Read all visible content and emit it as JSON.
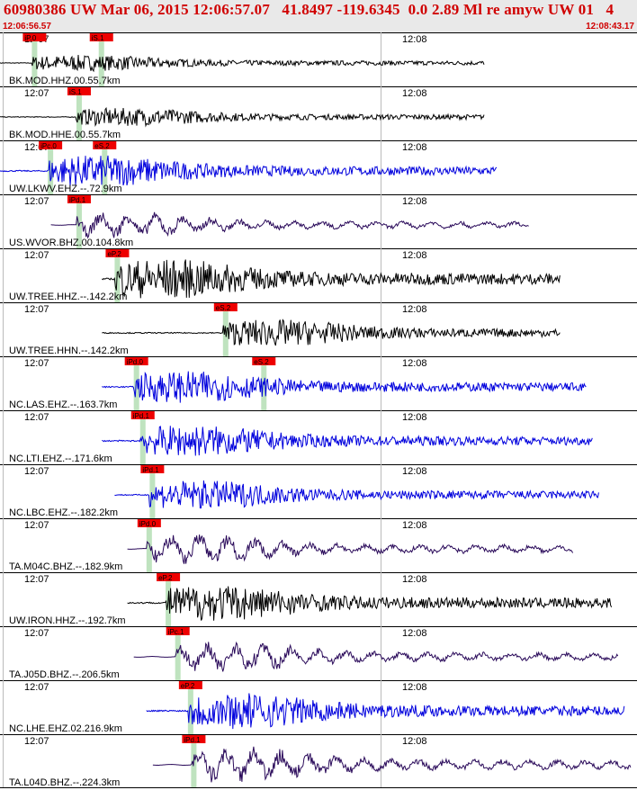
{
  "header": {
    "title": "60980386 UW Mar 06, 2015 12:06:57.07   41.8497 -119.6345  0.0 2.89 Ml re amyw UW 01   4",
    "start_time": "12:06:56.57",
    "end_time": "12:08:43.17"
  },
  "colors": {
    "header_text": "#d00000",
    "pick_box": "#ee0000",
    "pick_window": "#bfe3bf",
    "black_trace": "#000000",
    "blue_trace": "#0000dd",
    "purple_trace": "#2a0a5a"
  },
  "chart_data": {
    "type": "seismogram-record-section",
    "time_ticks": [
      "12:07",
      "12:08"
    ],
    "traces": [
      {
        "label": "BK.MOD.HHZ.00.55.7km",
        "color": "black",
        "amp": 0.18,
        "start": 0.0,
        "end": 0.76,
        "picks": [
          {
            "label": "iP.0",
            "t": 0.05,
            "green": true
          },
          {
            "label": "iS.1",
            "t": 0.155,
            "green": true
          }
        ]
      },
      {
        "label": "BK.MOD.HHE.00.55.7km",
        "color": "black",
        "amp": 0.2,
        "start": 0.0,
        "end": 0.76,
        "picks": [
          {
            "label": "iS.1",
            "t": 0.12,
            "green": true
          }
        ]
      },
      {
        "label": "UW.LKWV.EHZ.--.72.9km",
        "color": "blue",
        "amp": 0.35,
        "start": 0.0,
        "end": 0.78,
        "picks": [
          {
            "label": "iPc.0",
            "t": 0.075,
            "green": true
          },
          {
            "label": "eS.2",
            "t": 0.16,
            "green": true
          }
        ]
      },
      {
        "label": "US.WVOR.BHZ.00.104.8km",
        "color": "purple",
        "amp": 0.3,
        "start": 0.08,
        "end": 0.83,
        "picks": [
          {
            "label": "iPd.1",
            "t": 0.12,
            "green": true
          }
        ]
      },
      {
        "label": "UW.TREE.HHZ.--.142.2km",
        "color": "black",
        "amp": 0.45,
        "start": 0.16,
        "end": 0.88,
        "picks": [
          {
            "label": "eP.2",
            "t": 0.18,
            "green": true
          }
        ]
      },
      {
        "label": "UW.TREE.HHN.--.142.2km",
        "color": "black",
        "amp": 0.3,
        "start": 0.16,
        "end": 0.88,
        "picks": [
          {
            "label": "eS.2",
            "t": 0.35,
            "green": true
          }
        ]
      },
      {
        "label": "NC.LAS.EHZ.--.163.7km",
        "color": "blue",
        "amp": 0.35,
        "start": 0.16,
        "end": 0.92,
        "picks": [
          {
            "label": "iPd.0",
            "t": 0.21,
            "green": true
          },
          {
            "label": "eS.2",
            "t": 0.41,
            "green": true
          }
        ]
      },
      {
        "label": "NC.LTI.EHZ.--.171.6km",
        "color": "blue",
        "amp": 0.35,
        "start": 0.16,
        "end": 0.93,
        "picks": [
          {
            "label": "iPd.1",
            "t": 0.22,
            "green": true
          }
        ]
      },
      {
        "label": "NC.LBC.EHZ.--.182.2km",
        "color": "blue",
        "amp": 0.32,
        "start": 0.18,
        "end": 0.94,
        "picks": [
          {
            "label": "iPd.1",
            "t": 0.235,
            "green": true
          }
        ]
      },
      {
        "label": "TA.M04C.BHZ.--.182.9km",
        "color": "purple",
        "amp": 0.35,
        "start": 0.2,
        "end": 0.9,
        "picks": [
          {
            "label": "iPd.0",
            "t": 0.23,
            "green": true
          }
        ]
      },
      {
        "label": "UW.IRON.HHZ.--.192.7km",
        "color": "black",
        "amp": 0.4,
        "start": 0.2,
        "end": 0.96,
        "picks": [
          {
            "label": "eP.2",
            "t": 0.26,
            "green": true
          }
        ]
      },
      {
        "label": "TA.J05D.BHZ.--.206.5km",
        "color": "purple",
        "amp": 0.35,
        "start": 0.21,
        "end": 0.97,
        "picks": [
          {
            "label": "iPc.1",
            "t": 0.275,
            "green": true
          }
        ]
      },
      {
        "label": "NC.LHE.EHZ.02.216.9km",
        "color": "blue",
        "amp": 0.4,
        "start": 0.23,
        "end": 0.98,
        "picks": [
          {
            "label": "eP.2",
            "t": 0.295,
            "green": true
          }
        ]
      },
      {
        "label": "TA.L04D.BHZ.--.224.3km",
        "color": "purple",
        "amp": 0.4,
        "start": 0.24,
        "end": 0.99,
        "picks": [
          {
            "label": "iPd.1",
            "t": 0.3,
            "green": true
          }
        ]
      }
    ]
  }
}
